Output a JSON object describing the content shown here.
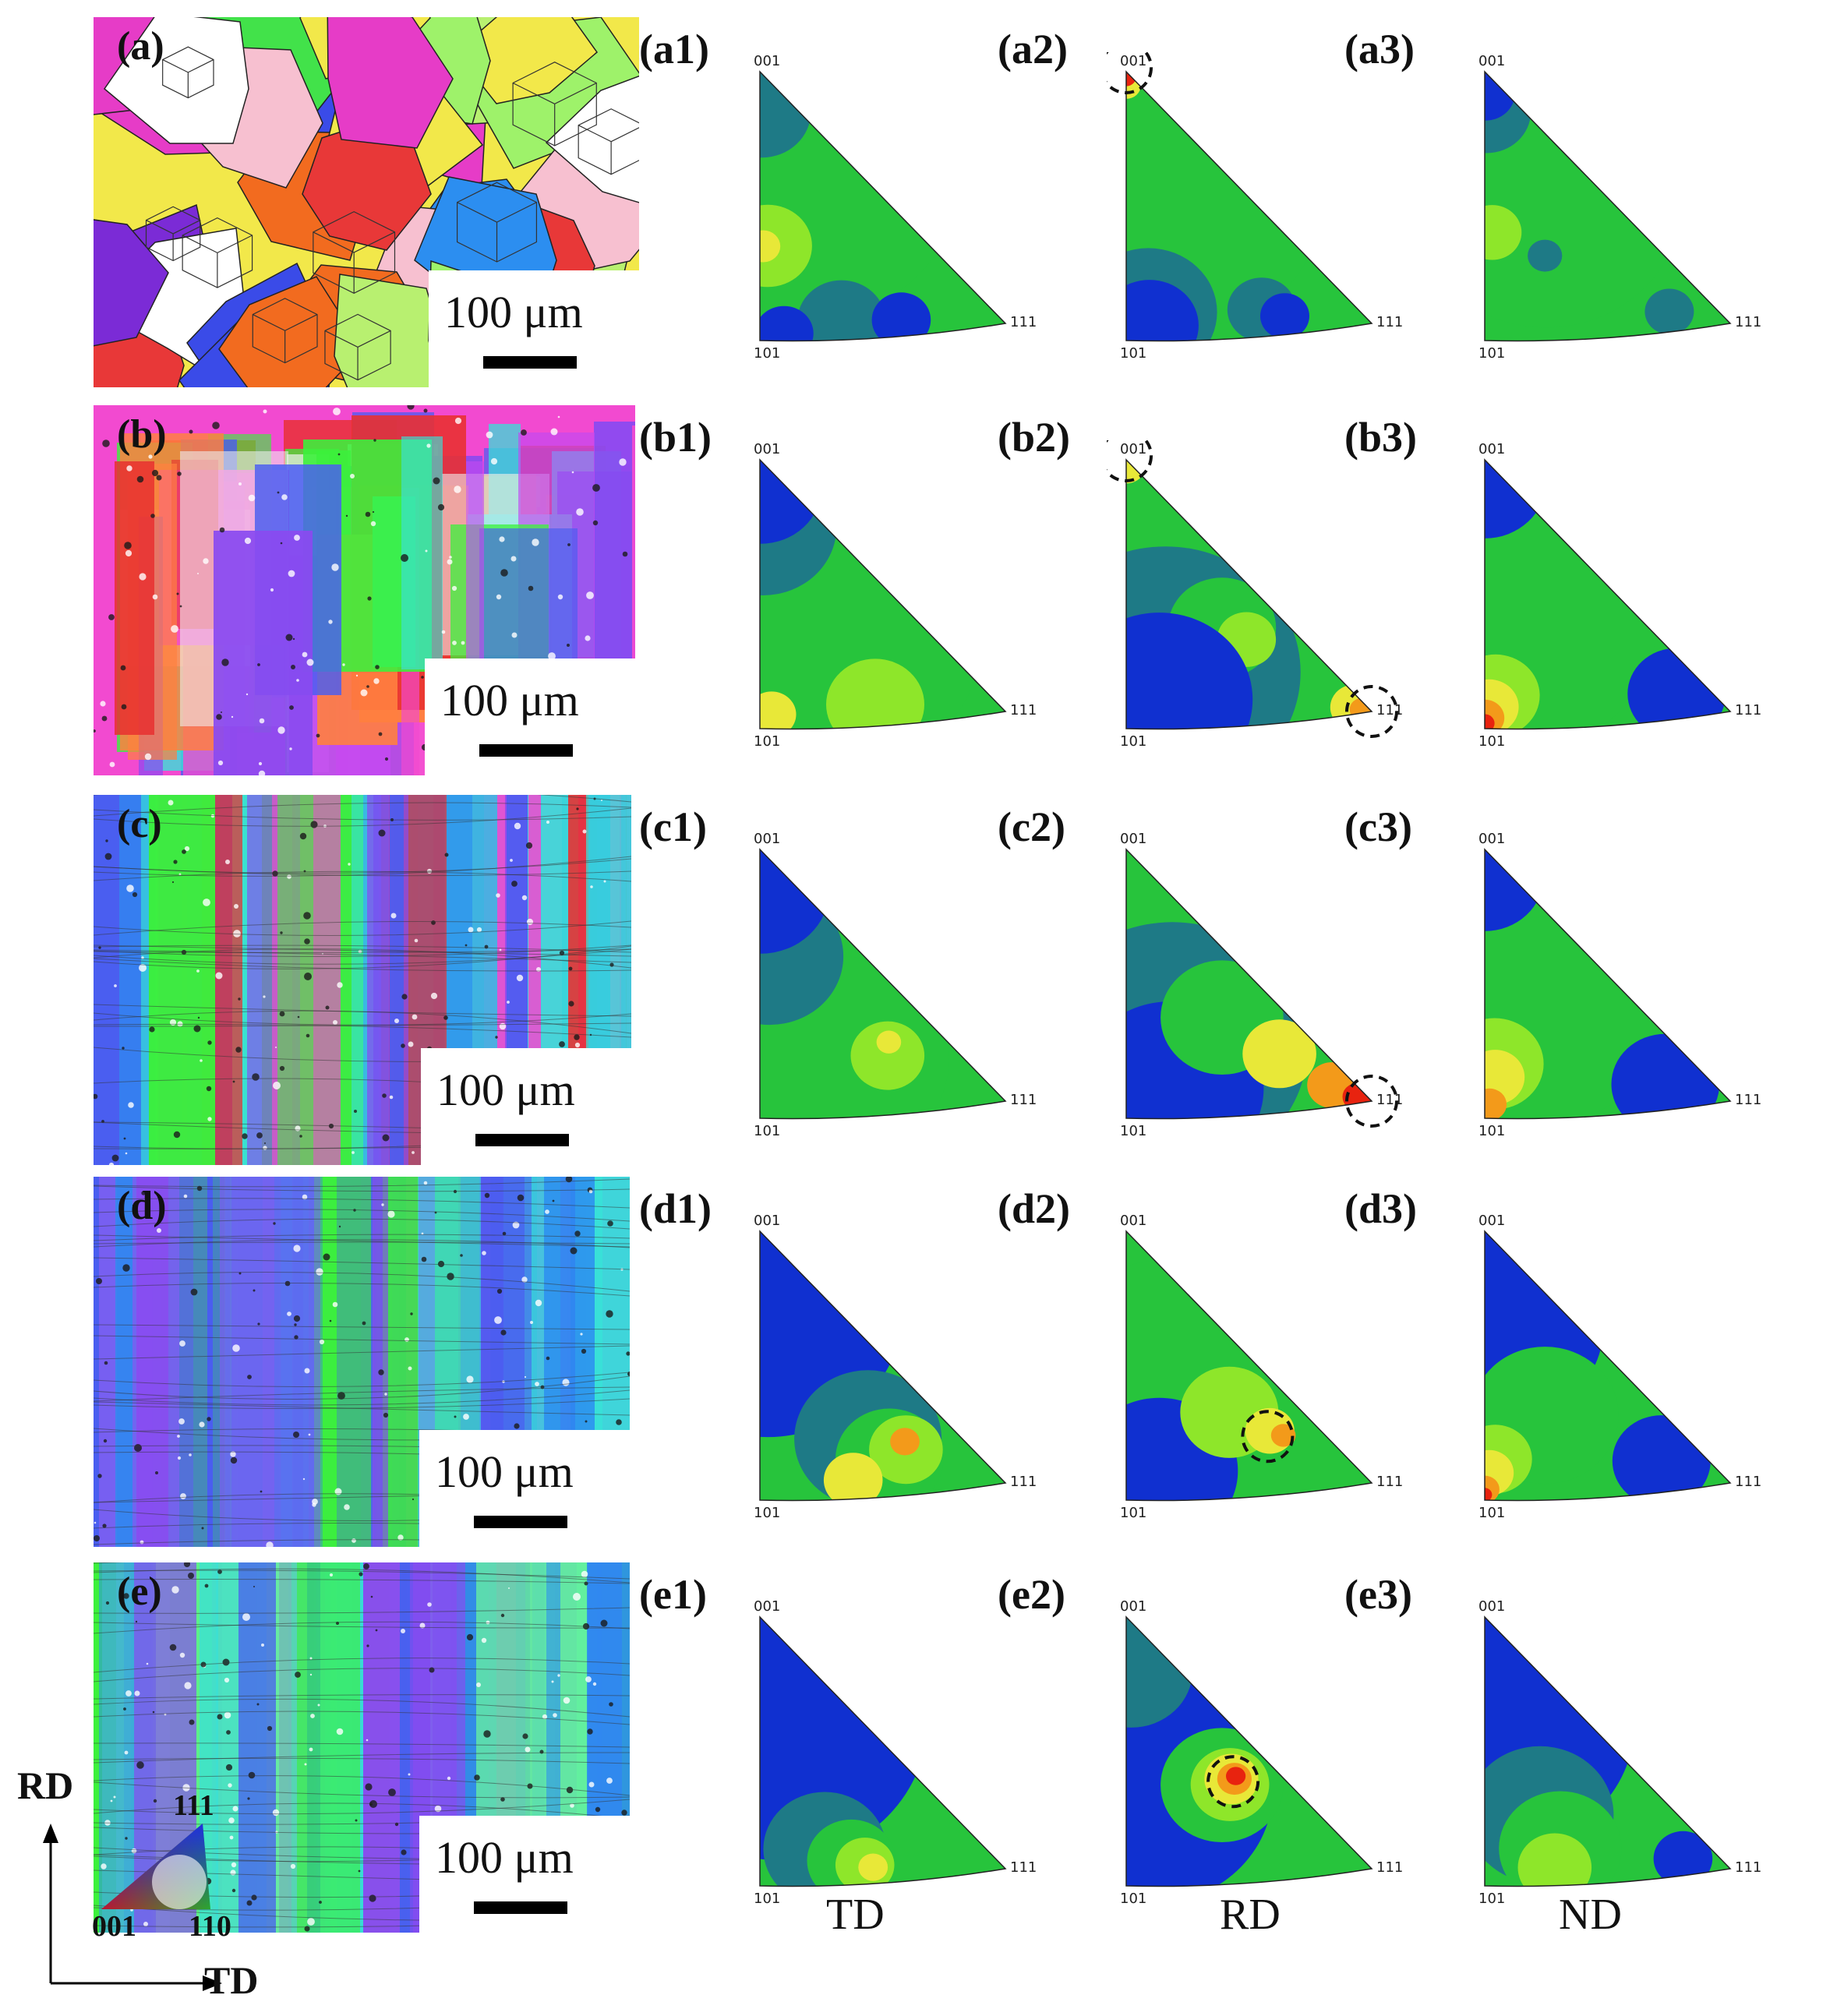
{
  "rows": [
    {
      "id": "a",
      "label": "(a)",
      "pfs": [
        {
          "label": "(a1)",
          "poles": {
            "top": "001",
            "left": "101",
            "right": "111"
          }
        },
        {
          "label": "(a2)",
          "poles": {
            "top": "001",
            "left": "101",
            "right": "111"
          }
        },
        {
          "label": "(a3)",
          "poles": {
            "top": "001",
            "left": "101",
            "right": "111"
          }
        }
      ]
    },
    {
      "id": "b",
      "label": "(b)",
      "pfs": [
        {
          "label": "(b1)",
          "poles": {
            "top": "001",
            "left": "101",
            "right": "111"
          }
        },
        {
          "label": "(b2)",
          "poles": {
            "top": "001",
            "left": "101",
            "right": "111"
          }
        },
        {
          "label": "(b3)",
          "poles": {
            "top": "001",
            "left": "101",
            "right": "111"
          }
        }
      ]
    },
    {
      "id": "c",
      "label": "(c)",
      "pfs": [
        {
          "label": "(c1)",
          "poles": {
            "top": "001",
            "left": "101",
            "right": "111"
          }
        },
        {
          "label": "(c2)",
          "poles": {
            "top": "001",
            "left": "101",
            "right": "111"
          }
        },
        {
          "label": "(c3)",
          "poles": {
            "top": "001",
            "left": "101",
            "right": "111"
          }
        }
      ]
    },
    {
      "id": "d",
      "label": "(d)",
      "pfs": [
        {
          "label": "(d1)",
          "poles": {
            "top": "001",
            "left": "101",
            "right": "111"
          }
        },
        {
          "label": "(d2)",
          "poles": {
            "top": "001",
            "left": "101",
            "right": "111"
          }
        },
        {
          "label": "(d3)",
          "poles": {
            "top": "001",
            "left": "101",
            "right": "111"
          }
        }
      ]
    },
    {
      "id": "e",
      "label": "(e)",
      "pfs": [
        {
          "label": "(e1)",
          "poles": {
            "top": "001",
            "left": "101",
            "right": "111"
          }
        },
        {
          "label": "(e2)",
          "poles": {
            "top": "001",
            "left": "101",
            "right": "111"
          }
        },
        {
          "label": "(e3)",
          "poles": {
            "top": "001",
            "left": "101",
            "right": "111"
          }
        }
      ]
    }
  ],
  "scale_bar_text": "100 μm",
  "column_labels": [
    "TD",
    "RD",
    "ND"
  ],
  "axes": {
    "vertical": "RD",
    "horizontal": "TD"
  },
  "ipf_legend": {
    "top": "111",
    "left": "001",
    "right": "110"
  },
  "colors": {
    "blue": "#1030d0",
    "teal": "#1e7a86",
    "green": "#27c43c",
    "lime": "#8ee62a",
    "yellow": "#e8e838",
    "orange": "#f39a1a",
    "red": "#e8230f"
  }
}
